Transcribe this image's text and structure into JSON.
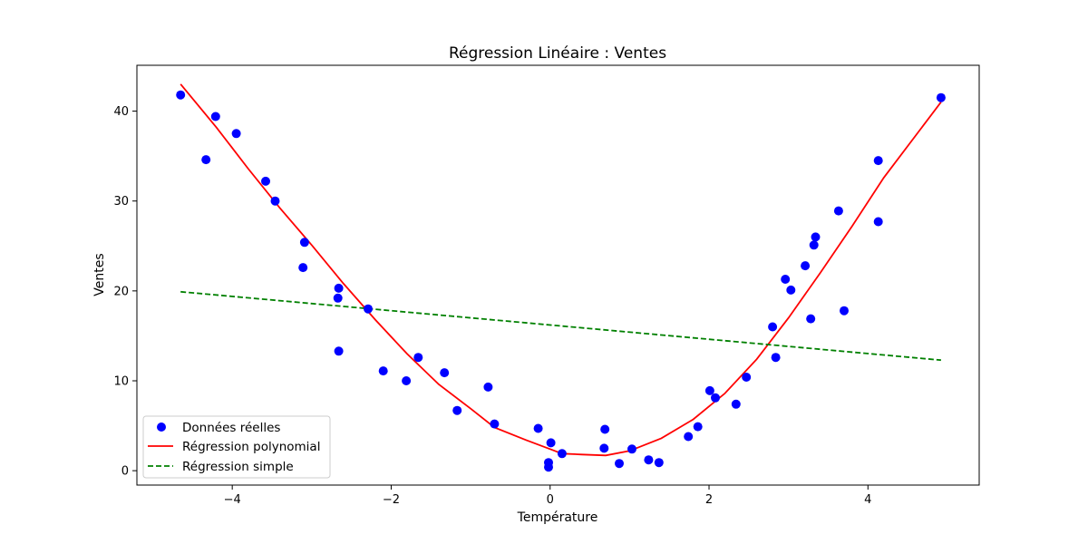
{
  "chart_data": {
    "type": "scatter",
    "title": "Régression Linéaire : Ventes",
    "xlabel": "Température",
    "ylabel": "Ventes",
    "xlim": [
      -5.2,
      5.4
    ],
    "ylim": [
      -1.6,
      45.1
    ],
    "xticks": [
      -4,
      -2,
      0,
      2,
      4
    ],
    "yticks": [
      0,
      10,
      20,
      30,
      40
    ],
    "grid": false,
    "legend_position": "lower-left",
    "series": [
      {
        "name": "Données réelles",
        "kind": "scatter",
        "color": "#0000ff",
        "points": [
          [
            -4.65,
            41.8
          ],
          [
            -4.33,
            34.6
          ],
          [
            -4.21,
            39.4
          ],
          [
            -3.95,
            37.5
          ],
          [
            -3.58,
            32.2
          ],
          [
            -3.46,
            30.0
          ],
          [
            -3.09,
            25.4
          ],
          [
            -3.11,
            22.6
          ],
          [
            -2.66,
            20.3
          ],
          [
            -2.67,
            19.2
          ],
          [
            -2.66,
            13.3
          ],
          [
            -2.29,
            18.0
          ],
          [
            -2.1,
            11.1
          ],
          [
            -1.81,
            10.0
          ],
          [
            -1.66,
            12.6
          ],
          [
            -1.33,
            10.9
          ],
          [
            -1.17,
            6.7
          ],
          [
            -0.78,
            9.3
          ],
          [
            -0.7,
            5.2
          ],
          [
            -0.15,
            4.7
          ],
          [
            -0.02,
            0.4
          ],
          [
            -0.02,
            0.9
          ],
          [
            0.01,
            3.1
          ],
          [
            0.15,
            1.9
          ],
          [
            0.68,
            2.5
          ],
          [
            0.69,
            4.6
          ],
          [
            0.87,
            0.8
          ],
          [
            1.03,
            2.4
          ],
          [
            1.24,
            1.2
          ],
          [
            1.37,
            0.9
          ],
          [
            1.74,
            3.8
          ],
          [
            1.86,
            4.9
          ],
          [
            2.01,
            8.9
          ],
          [
            2.08,
            8.1
          ],
          [
            2.34,
            7.4
          ],
          [
            2.47,
            10.4
          ],
          [
            2.8,
            16.0
          ],
          [
            2.84,
            12.6
          ],
          [
            2.96,
            21.3
          ],
          [
            3.03,
            20.1
          ],
          [
            3.21,
            22.8
          ],
          [
            3.28,
            16.9
          ],
          [
            3.32,
            25.1
          ],
          [
            3.34,
            26.0
          ],
          [
            3.63,
            28.9
          ],
          [
            3.7,
            17.8
          ],
          [
            4.13,
            34.5
          ],
          [
            4.13,
            27.7
          ],
          [
            4.92,
            41.5
          ]
        ]
      },
      {
        "name": "Régression polynomial",
        "kind": "line",
        "color": "#ff0000",
        "dash": "solid",
        "points": [
          [
            -4.65,
            43.0
          ],
          [
            -4.2,
            38.2
          ],
          [
            -3.8,
            33.6
          ],
          [
            -3.4,
            29.2
          ],
          [
            -3.0,
            25.1
          ],
          [
            -2.6,
            20.8
          ],
          [
            -2.2,
            16.8
          ],
          [
            -1.8,
            13.0
          ],
          [
            -1.4,
            9.6
          ],
          [
            -1.0,
            6.9
          ],
          [
            -0.7,
            4.8
          ],
          [
            -0.3,
            3.4
          ],
          [
            0.0,
            2.4
          ],
          [
            0.15,
            1.9
          ],
          [
            0.4,
            1.8
          ],
          [
            0.7,
            1.7
          ],
          [
            1.0,
            2.2
          ],
          [
            1.4,
            3.6
          ],
          [
            1.8,
            5.7
          ],
          [
            2.2,
            8.6
          ],
          [
            2.6,
            12.4
          ],
          [
            3.0,
            17.0
          ],
          [
            3.4,
            22.0
          ],
          [
            3.8,
            27.2
          ],
          [
            4.2,
            32.6
          ],
          [
            4.92,
            41.0
          ]
        ]
      },
      {
        "name": "Régression simple",
        "kind": "line",
        "color": "#008000",
        "dash": "dashed",
        "points": [
          [
            -4.65,
            19.9
          ],
          [
            4.92,
            12.3
          ]
        ]
      }
    ]
  }
}
